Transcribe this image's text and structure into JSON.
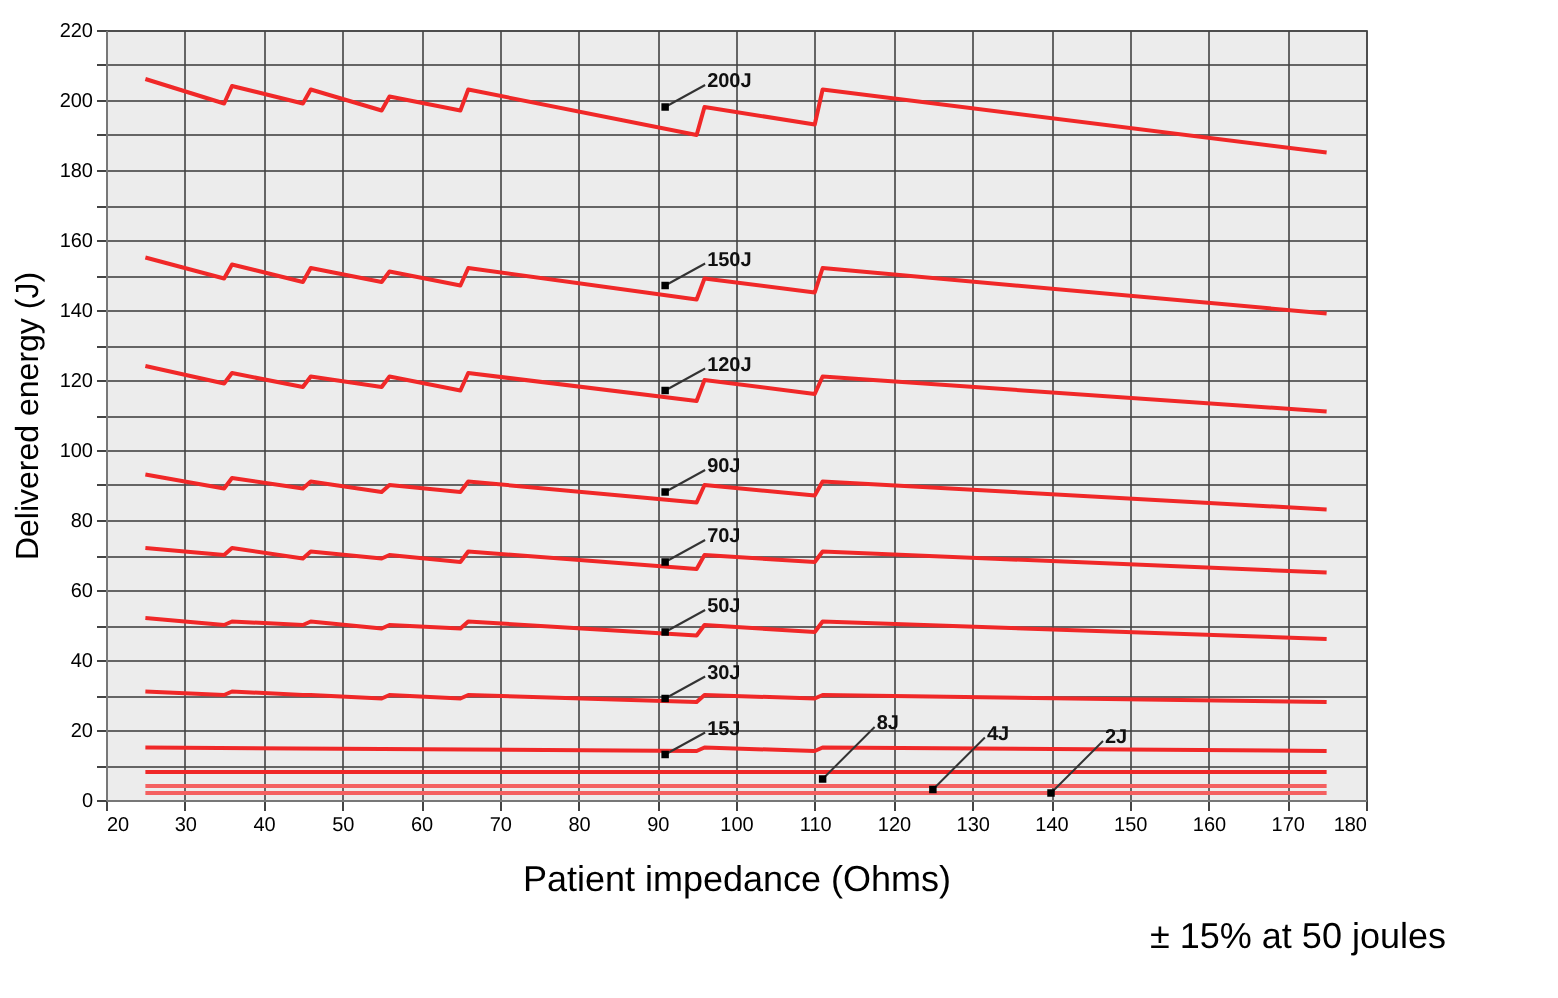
{
  "chart_data": {
    "type": "line",
    "xlabel": "Patient impedance (Ohms)",
    "ylabel": "Delivered energy (J)",
    "xlim": [
      20,
      180
    ],
    "xticks": [
      20,
      30,
      40,
      50,
      60,
      70,
      80,
      90,
      100,
      110,
      120,
      130,
      140,
      150,
      160,
      170,
      180
    ],
    "ylim": [
      0,
      220
    ],
    "yticks": [
      0,
      {
        "value": 10,
        "label": null
      },
      20,
      {
        "value": 30,
        "label": null
      },
      40,
      {
        "value": 50,
        "label": null
      },
      60,
      {
        "value": 70,
        "label": null
      },
      80,
      {
        "value": 90,
        "label": null
      },
      100,
      {
        "value": 110,
        "label": null
      },
      120,
      {
        "value": 130,
        "label": null
      },
      140,
      {
        "value": 150,
        "label": null
      },
      160,
      {
        "value": 170,
        "label": null
      },
      180,
      {
        "value": 190,
        "label": null
      },
      200,
      {
        "value": 210,
        "label": null
      },
      220
    ],
    "grid": true,
    "legend": false,
    "line_style": "solid",
    "marker": "none",
    "series": [
      {
        "color": "#f02828",
        "x": [
          25,
          35,
          36,
          45,
          46,
          55,
          56,
          65,
          66,
          95,
          96,
          110,
          111,
          175
        ],
        "values": [
          206,
          199,
          204,
          199,
          203,
          197,
          201,
          197,
          203,
          190,
          198,
          193,
          203,
          185
        ]
      },
      {
        "color": "#f02828",
        "x": [
          25,
          35,
          36,
          45,
          46,
          55,
          56,
          65,
          66,
          95,
          96,
          110,
          111,
          175
        ],
        "values": [
          155,
          149,
          153,
          148,
          152,
          148,
          151,
          147,
          152,
          143,
          149,
          145,
          152,
          139
        ]
      },
      {
        "color": "#f02828",
        "x": [
          25,
          35,
          36,
          45,
          46,
          55,
          56,
          65,
          66,
          95,
          96,
          110,
          111,
          175
        ],
        "values": [
          124,
          119,
          122,
          118,
          121,
          118,
          121,
          117,
          122,
          114,
          120,
          116,
          121,
          111
        ]
      },
      {
        "color": "#f02828",
        "x": [
          25,
          35,
          36,
          45,
          46,
          55,
          56,
          65,
          66,
          95,
          96,
          110,
          111,
          175
        ],
        "values": [
          93,
          89,
          92,
          89,
          91,
          88,
          90,
          88,
          91,
          85,
          90,
          87,
          91,
          83
        ]
      },
      {
        "color": "#f02828",
        "x": [
          25,
          35,
          36,
          45,
          46,
          55,
          56,
          65,
          66,
          95,
          96,
          110,
          111,
          175
        ],
        "values": [
          72,
          70,
          72,
          69,
          71,
          69,
          70,
          68,
          71,
          66,
          70,
          68,
          71,
          65
        ]
      },
      {
        "color": "#f02828",
        "x": [
          25,
          35,
          36,
          45,
          46,
          55,
          56,
          65,
          66,
          95,
          96,
          110,
          111,
          175
        ],
        "values": [
          52,
          50,
          51,
          50,
          51,
          49,
          50,
          49,
          51,
          47,
          50,
          48,
          51,
          46
        ]
      },
      {
        "color": "#f02828",
        "x": [
          25,
          35,
          36,
          45,
          46,
          55,
          56,
          65,
          66,
          95,
          96,
          110,
          111,
          175
        ],
        "values": [
          31,
          30,
          31,
          30,
          30,
          29,
          30,
          29,
          30,
          28,
          30,
          29,
          30,
          28
        ]
      },
      {
        "color": "#f02828",
        "x": [
          25,
          95,
          96,
          110,
          111,
          175
        ],
        "values": [
          15,
          14,
          15,
          14,
          15,
          14
        ]
      },
      {
        "color": "#f02828",
        "x": [
          25,
          175
        ],
        "values": [
          8,
          8
        ]
      },
      {
        "color": "#f46060",
        "x": [
          25,
          175
        ],
        "values": [
          4,
          4
        ]
      },
      {
        "color": "#f46060",
        "x": [
          25,
          175
        ],
        "values": [
          2,
          2
        ]
      }
    ],
    "annotations": [
      {
        "text": "200J",
        "x": 91,
        "y": 198
      },
      {
        "text": "150J",
        "x": 91,
        "y": 147
      },
      {
        "text": "120J",
        "x": 91,
        "y": 117
      },
      {
        "text": "90J",
        "x": 91,
        "y": 88
      },
      {
        "text": "70J",
        "x": 91,
        "y": 68
      },
      {
        "text": "50J",
        "x": 91,
        "y": 48
      },
      {
        "text": "30J",
        "x": 91,
        "y": 29
      },
      {
        "text": "15J",
        "x": 91,
        "y": 13
      },
      {
        "text": "8J",
        "x": 111,
        "y": 6
      },
      {
        "text": "4J",
        "x": 125,
        "y": 3
      },
      {
        "text": "2J",
        "x": 140,
        "y": 2
      },
      "± 15% at 50 joules"
    ]
  }
}
